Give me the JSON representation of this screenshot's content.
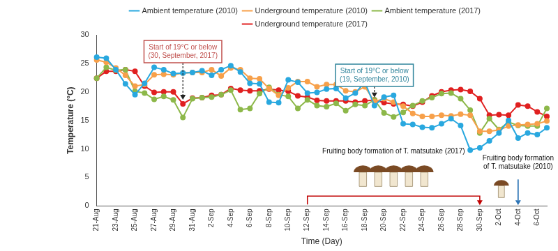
{
  "chart_data": {
    "type": "line",
    "x_label": "Time (Day)",
    "y_label": "Temperature (°C)",
    "categories": [
      "21-Aug",
      null,
      "23-Aug",
      null,
      "25-Aug",
      null,
      "27-Aug",
      null,
      "29-Aug",
      null,
      "31-Aug",
      null,
      "2-Sep",
      null,
      "4-Sep",
      null,
      "6-Sep",
      null,
      "8-Sep",
      null,
      "10-Sep",
      null,
      "12-Sep",
      null,
      "14-Sep",
      null,
      "16-Sep",
      null,
      "18-Sep",
      null,
      "20-Sep",
      null,
      "22-Sep",
      null,
      "24-Sep",
      null,
      "26-Sep",
      null,
      "28-Sep",
      null,
      "30-Sep",
      null,
      "2-Oct",
      null,
      "4-Oct",
      null,
      "6-Oct",
      null
    ],
    "series": [
      {
        "name": "Ambient temperature (2010)",
        "color": "#29a8df",
        "values": [
          26.1,
          25.9,
          23.9,
          21.4,
          19.5,
          21.5,
          24.3,
          23.9,
          23.2,
          23.3,
          23.4,
          23.7,
          22.9,
          23.9,
          24.6,
          23.5,
          21.5,
          21.4,
          18.2,
          18.1,
          22.1,
          21.7,
          19.8,
          19.9,
          20.5,
          20.6,
          18.9,
          19.8,
          21.7,
          17.6,
          19.1,
          19.4,
          14.4,
          14.3,
          13.8,
          13.7,
          14.4,
          15.3,
          14.1,
          9.8,
          10.2,
          11.4,
          12.8,
          15.0,
          11.9,
          12.8,
          12.5,
          13.7
        ]
      },
      {
        "name": "Underground temperature (2010)",
        "color": "#f7a04a",
        "values": [
          25.6,
          25.2,
          24.2,
          22.9,
          21.0,
          21.3,
          23.0,
          23.1,
          23.0,
          23.3,
          23.4,
          23.4,
          23.9,
          22.8,
          24.2,
          23.9,
          22.4,
          22.3,
          20.6,
          19.4,
          20.7,
          21.8,
          21.8,
          20.9,
          21.3,
          21.3,
          20.2,
          20.0,
          20.9,
          18.3,
          18.8,
          18.2,
          17.5,
          16.2,
          15.7,
          15.7,
          15.9,
          15.8,
          16.1,
          15.9,
          13.1,
          13.1,
          13.3,
          14.0,
          14.2,
          14.3,
          14.4,
          14.9
        ]
      },
      {
        "name": "Ambient temperature (2017)",
        "color": "#8db84a",
        "values": [
          22.4,
          24.3,
          23.8,
          23.9,
          20.1,
          19.8,
          18.7,
          19.2,
          18.6,
          15.5,
          18.8,
          19.0,
          19.1,
          19.5,
          20.3,
          16.9,
          17.1,
          19.7,
          20.8,
          19.5,
          19.2,
          17.1,
          18.6,
          17.6,
          17.4,
          18.0,
          16.7,
          17.8,
          17.6,
          18.6,
          16.3,
          15.6,
          16.4,
          17.6,
          18.4,
          19.0,
          19.7,
          19.8,
          18.8,
          16.8,
          12.8,
          15.3,
          13.4,
          14.7,
          14.1,
          14.0,
          14.0,
          17.1
        ]
      },
      {
        "name": "Underground temperature (2017)",
        "color": "#e02020",
        "values": [
          22.4,
          23.6,
          23.6,
          23.9,
          23.6,
          21.0,
          19.9,
          20.0,
          20.0,
          17.9,
          18.9,
          19.0,
          19.4,
          19.5,
          20.6,
          20.3,
          20.2,
          20.2,
          20.5,
          20.3,
          20.1,
          19.3,
          19.1,
          18.5,
          18.4,
          18.4,
          18.4,
          18.2,
          18.4,
          18.6,
          18.1,
          17.9,
          17.8,
          17.5,
          18.2,
          19.3,
          20.0,
          20.3,
          20.4,
          20.1,
          18.8,
          15.9,
          16.0,
          15.9,
          17.7,
          17.5,
          16.5,
          15.7
        ]
      }
    ],
    "ylim": [
      0,
      30
    ],
    "yticks": [
      0,
      5,
      10,
      15,
      20,
      25,
      30
    ],
    "grid": false,
    "legend": "top",
    "marker": "circle",
    "line_style": "solid",
    "annotations": [
      {
        "kind": "box_arrow",
        "text": [
          "Start of 19°C or below",
          "(30, September, 2017)"
        ],
        "x": 9,
        "color": "#c0504d"
      },
      {
        "kind": "box_arrow",
        "text": [
          "Start of 19°C or below",
          "(19, September, 2010)"
        ],
        "x": 29,
        "color": "#31859c"
      },
      {
        "kind": "bracket",
        "text": [
          "Fruiting body formation of T. matsutake (2017)"
        ],
        "x": [
          22,
          40
        ],
        "color": "#c00000"
      },
      {
        "kind": "arrow_down",
        "text": [
          "Fruiting body formation",
          "of T. matsutake (2010)"
        ],
        "x": 44,
        "color": "#2e75b6"
      }
    ]
  }
}
